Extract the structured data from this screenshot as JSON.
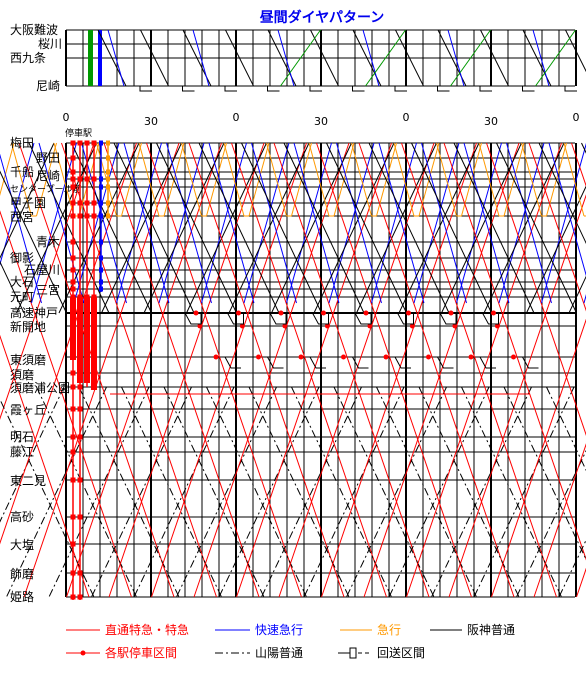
{
  "title": "昼間ダイヤパターン",
  "top_panel": {
    "stations": [
      "大阪難波",
      "桜川",
      "西九条",
      "尼崎"
    ]
  },
  "main_panel": {
    "stop_label": "停車駅",
    "stations": [
      "梅田",
      "野田",
      "千船",
      "尼崎",
      "センタープール前",
      "甲子園",
      "西宮",
      "青木",
      "御影",
      "石屋川",
      "大石",
      "三宮",
      "元町",
      "高速神戸",
      "新開地",
      "東須磨",
      "須磨",
      "須磨浦公園",
      "霞ヶ丘",
      "明石",
      "藤江",
      "東二見",
      "高砂",
      "大塩",
      "飾磨",
      "姫路"
    ]
  },
  "time_ticks": [
    "0",
    "30",
    "0",
    "30",
    "0",
    "30",
    "0"
  ],
  "legend": {
    "limited": "直通特急・特急",
    "rapid_exp": "快速急行",
    "express": "急行",
    "hanshin_local": "阪神普通",
    "stop_section": "各駅停車区間",
    "sanyo_local": "山陽普通",
    "deadhead": "回送区間"
  },
  "colors": {
    "limited": "#ff0000",
    "rapid_exp": "#0000ff",
    "express": "#ff9900",
    "local": "#000000",
    "green_line": "#009900",
    "title": "#0000ee"
  }
}
